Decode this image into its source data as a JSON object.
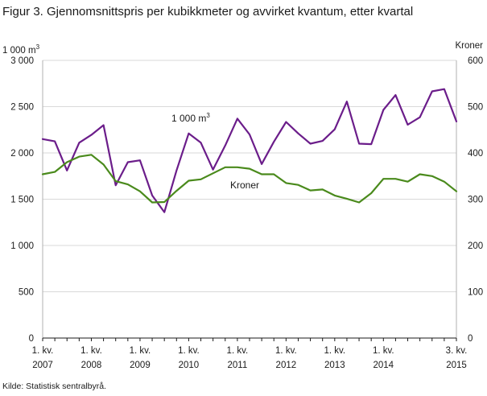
{
  "title": "Figur 3. Gjennomsnittspris per kubikkmeter og avvirket kvantum, etter kvartal",
  "source": "Kilde: Statistisk sentralbyrå.",
  "chart_data": {
    "type": "line",
    "left_axis": {
      "unit_base": "1 000 m",
      "unit_sup": "3",
      "range": [
        0,
        3000
      ],
      "ticks": [
        0,
        500,
        1000,
        1500,
        2000,
        2500,
        3000
      ],
      "tick_labels": [
        "0",
        "500",
        "1 000",
        "1 500",
        "2 000",
        "2 500",
        "3 000"
      ]
    },
    "right_axis": {
      "unit": "Kroner",
      "range": [
        0,
        600
      ],
      "ticks": [
        0,
        100,
        200,
        300,
        400,
        500,
        600
      ],
      "tick_labels": [
        "0",
        "100",
        "200",
        "300",
        "400",
        "500",
        "600"
      ]
    },
    "x_tick_labels": [
      {
        "index": 0,
        "line1": "1. kv.",
        "line2": "2007"
      },
      {
        "index": 4,
        "line1": "1. kv.",
        "line2": "2008"
      },
      {
        "index": 8,
        "line1": "1. kv.",
        "line2": "2009"
      },
      {
        "index": 12,
        "line1": "1. kv.",
        "line2": "2010"
      },
      {
        "index": 16,
        "line1": "1. kv.",
        "line2": "2011"
      },
      {
        "index": 20,
        "line1": "1. kv.",
        "line2": "2012"
      },
      {
        "index": 24,
        "line1": "1. kv.",
        "line2": "2013"
      },
      {
        "index": 28,
        "line1": "1. kv.",
        "line2": "2014"
      },
      {
        "index": 34,
        "line1": "3. kv.",
        "line2": "2015"
      }
    ],
    "x": [
      "2007K1",
      "2007K2",
      "2007K3",
      "2007K4",
      "2008K1",
      "2008K2",
      "2008K3",
      "2008K4",
      "2009K1",
      "2009K2",
      "2009K3",
      "2009K4",
      "2010K1",
      "2010K2",
      "2010K3",
      "2010K4",
      "2011K1",
      "2011K2",
      "2011K3",
      "2011K4",
      "2012K1",
      "2012K2",
      "2012K3",
      "2012K4",
      "2013K1",
      "2013K2",
      "2013K3",
      "2013K4",
      "2014K1",
      "2014K2",
      "2014K3",
      "2014K4",
      "2015K1",
      "2015K2",
      "2015K3"
    ],
    "series": [
      {
        "name": "1 000 m",
        "label_sup": "3",
        "axis": "left",
        "color": "#6b1d8a",
        "values": [
          2150,
          2125,
          1810,
          2110,
          2195,
          2300,
          1650,
          1900,
          1920,
          1540,
          1360,
          1810,
          2210,
          2110,
          1820,
          2080,
          2370,
          2200,
          1880,
          2120,
          2335,
          2210,
          2100,
          2130,
          2255,
          2555,
          2100,
          2095,
          2465,
          2625,
          2305,
          2385,
          2665,
          2690,
          2340
        ]
      },
      {
        "name": "Kroner",
        "axis": "right",
        "color": "#4a8a1c",
        "values": [
          354,
          359,
          380,
          392,
          396,
          375,
          339,
          332,
          317,
          293,
          294,
          318,
          340,
          343,
          356,
          369,
          369,
          366,
          354,
          354,
          335,
          331,
          319,
          321,
          308,
          301,
          293,
          313,
          344,
          344,
          338,
          354,
          350,
          338,
          317
        ]
      }
    ],
    "grid": true
  }
}
